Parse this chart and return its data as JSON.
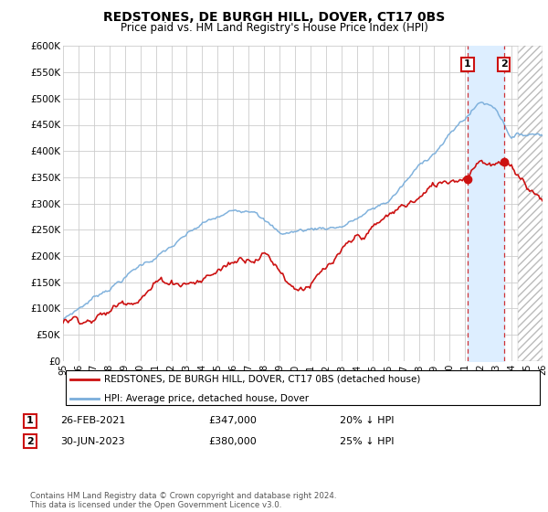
{
  "title": "REDSTONES, DE BURGH HILL, DOVER, CT17 0BS",
  "subtitle": "Price paid vs. HM Land Registry's House Price Index (HPI)",
  "ylabel_ticks": [
    "£0",
    "£50K",
    "£100K",
    "£150K",
    "£200K",
    "£250K",
    "£300K",
    "£350K",
    "£400K",
    "£450K",
    "£500K",
    "£550K",
    "£600K"
  ],
  "ytick_values": [
    0,
    50000,
    100000,
    150000,
    200000,
    250000,
    300000,
    350000,
    400000,
    450000,
    500000,
    550000,
    600000
  ],
  "hpi_color": "#7aaedb",
  "price_color": "#cc1111",
  "fill_color": "#ddeeff",
  "hatch_color": "#aaaaaa",
  "marker1_year": 2021.15,
  "marker2_year": 2023.5,
  "marker1_price": 347000,
  "marker2_price": 380000,
  "legend_label1": "REDSTONES, DE BURGH HILL, DOVER, CT17 0BS (detached house)",
  "legend_label2": "HPI: Average price, detached house, Dover",
  "note1_date": "26-FEB-2021",
  "note1_price": "£347,000",
  "note1_hpi": "20% ↓ HPI",
  "note2_date": "30-JUN-2023",
  "note2_price": "£380,000",
  "note2_hpi": "25% ↓ HPI",
  "footer": "Contains HM Land Registry data © Crown copyright and database right 2024.\nThis data is licensed under the Open Government Licence v3.0.",
  "background_color": "#ffffff",
  "grid_color": "#cccccc"
}
